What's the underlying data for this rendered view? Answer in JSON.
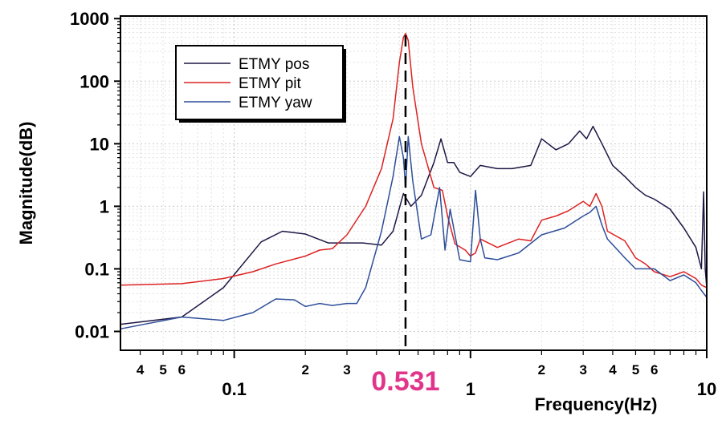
{
  "chart_data": {
    "type": "line",
    "xlabel": "Frequency(Hz)",
    "ylabel": "Magnitude(dB)",
    "xscale": "log",
    "yscale": "log",
    "xlim": [
      0.033,
      10
    ],
    "ylim": [
      0.005,
      1100
    ],
    "grid": true,
    "legend_position": "top-left",
    "x_major_ticks": [
      {
        "value": 0.1,
        "label": "0.1"
      },
      {
        "value": 1,
        "label": "1"
      },
      {
        "value": 10,
        "label": "10"
      }
    ],
    "x_minor_ticks": [
      {
        "value": 0.04,
        "label": "4"
      },
      {
        "value": 0.05,
        "label": "5"
      },
      {
        "value": 0.06,
        "label": "6"
      },
      {
        "value": 0.07,
        "label": ""
      },
      {
        "value": 0.08,
        "label": ""
      },
      {
        "value": 0.09,
        "label": ""
      },
      {
        "value": 0.2,
        "label": "2"
      },
      {
        "value": 0.3,
        "label": "3"
      },
      {
        "value": 0.4,
        "label": ""
      },
      {
        "value": 0.5,
        "label": ""
      },
      {
        "value": 0.6,
        "label": ""
      },
      {
        "value": 0.7,
        "label": ""
      },
      {
        "value": 0.8,
        "label": ""
      },
      {
        "value": 0.9,
        "label": ""
      },
      {
        "value": 2,
        "label": "2"
      },
      {
        "value": 3,
        "label": "3"
      },
      {
        "value": 4,
        "label": "4"
      },
      {
        "value": 5,
        "label": "5"
      },
      {
        "value": 6,
        "label": "6"
      },
      {
        "value": 7,
        "label": ""
      },
      {
        "value": 8,
        "label": ""
      },
      {
        "value": 9,
        "label": ""
      }
    ],
    "y_ticks": [
      {
        "value": 0.01,
        "label": "0.01"
      },
      {
        "value": 0.1,
        "label": "0.1"
      },
      {
        "value": 1,
        "label": "1"
      },
      {
        "value": 10,
        "label": "10"
      },
      {
        "value": 100,
        "label": "100"
      },
      {
        "value": 1000,
        "label": "1000"
      }
    ],
    "annotation": {
      "x": 0.531,
      "label": "0.531",
      "color": "#e0358a",
      "style": "dashed vertical line"
    },
    "series": [
      {
        "name": "ETMY pos",
        "color": "#1e1745",
        "x": [
          0.033,
          0.06,
          0.09,
          0.13,
          0.16,
          0.2,
          0.25,
          0.35,
          0.42,
          0.47,
          0.52,
          0.56,
          0.62,
          0.7,
          0.75,
          0.8,
          0.85,
          0.9,
          1.0,
          1.1,
          1.3,
          1.5,
          1.8,
          2.0,
          2.3,
          2.6,
          2.9,
          3.1,
          3.3,
          3.6,
          4.0,
          4.5,
          5.0,
          5.5,
          6.0,
          7.0,
          8.0,
          9.0,
          9.5,
          9.7,
          9.85,
          10.0
        ],
        "y": [
          0.013,
          0.017,
          0.05,
          0.27,
          0.4,
          0.36,
          0.26,
          0.26,
          0.24,
          0.4,
          1.6,
          1.0,
          1.5,
          5.0,
          12.0,
          5.0,
          5.0,
          3.5,
          3.0,
          4.5,
          4.0,
          4.0,
          4.5,
          12.0,
          8.0,
          10.0,
          16.0,
          12.0,
          19.0,
          10.0,
          4.5,
          3.0,
          2.0,
          1.5,
          1.3,
          0.9,
          0.45,
          0.22,
          0.1,
          1.7,
          0.1,
          0.05
        ]
      },
      {
        "name": "ETMY pit",
        "color": "#dd2222",
        "x": [
          0.033,
          0.06,
          0.09,
          0.12,
          0.15,
          0.2,
          0.23,
          0.26,
          0.3,
          0.36,
          0.42,
          0.47,
          0.5,
          0.52,
          0.531,
          0.545,
          0.57,
          0.62,
          0.7,
          0.76,
          0.8,
          0.86,
          0.95,
          1.0,
          1.05,
          1.1,
          1.3,
          1.6,
          1.8,
          2.0,
          2.3,
          2.6,
          3.0,
          3.2,
          3.4,
          3.6,
          3.8,
          4.5,
          5.0,
          5.5,
          6.0,
          7.0,
          8.0,
          9.0,
          9.5,
          10.0
        ],
        "y": [
          0.055,
          0.058,
          0.07,
          0.09,
          0.12,
          0.16,
          0.2,
          0.21,
          0.35,
          1.0,
          4.0,
          25.0,
          200.0,
          500.0,
          580.0,
          450.0,
          80.0,
          10.0,
          2.0,
          1.8,
          0.7,
          0.25,
          0.2,
          0.16,
          0.18,
          0.3,
          0.22,
          0.3,
          0.28,
          0.6,
          0.7,
          0.85,
          1.2,
          1.0,
          1.6,
          1.0,
          0.4,
          0.28,
          0.15,
          0.12,
          0.09,
          0.075,
          0.09,
          0.07,
          0.055,
          0.05
        ]
      },
      {
        "name": "ETMY yaw",
        "color": "#2e4e99",
        "x": [
          0.033,
          0.06,
          0.09,
          0.12,
          0.15,
          0.18,
          0.2,
          0.23,
          0.26,
          0.3,
          0.33,
          0.36,
          0.42,
          0.47,
          0.5,
          0.52,
          0.531,
          0.545,
          0.57,
          0.62,
          0.68,
          0.74,
          0.78,
          0.82,
          0.9,
          1.0,
          1.05,
          1.1,
          1.15,
          1.3,
          1.6,
          2.0,
          2.5,
          3.0,
          3.2,
          3.4,
          3.6,
          3.8,
          4.5,
          5.0,
          6.0,
          7.0,
          8.0,
          9.0,
          9.5,
          10.0
        ],
        "y": [
          0.011,
          0.017,
          0.015,
          0.02,
          0.033,
          0.032,
          0.025,
          0.028,
          0.026,
          0.028,
          0.028,
          0.05,
          0.4,
          3.0,
          13.0,
          6.0,
          2.0,
          13.0,
          2.5,
          0.3,
          0.35,
          2.0,
          0.2,
          0.9,
          0.14,
          0.13,
          1.8,
          0.3,
          0.15,
          0.14,
          0.18,
          0.35,
          0.45,
          0.7,
          0.8,
          1.0,
          0.5,
          0.3,
          0.15,
          0.1,
          0.1,
          0.065,
          0.08,
          0.06,
          0.045,
          0.035
        ]
      }
    ]
  }
}
